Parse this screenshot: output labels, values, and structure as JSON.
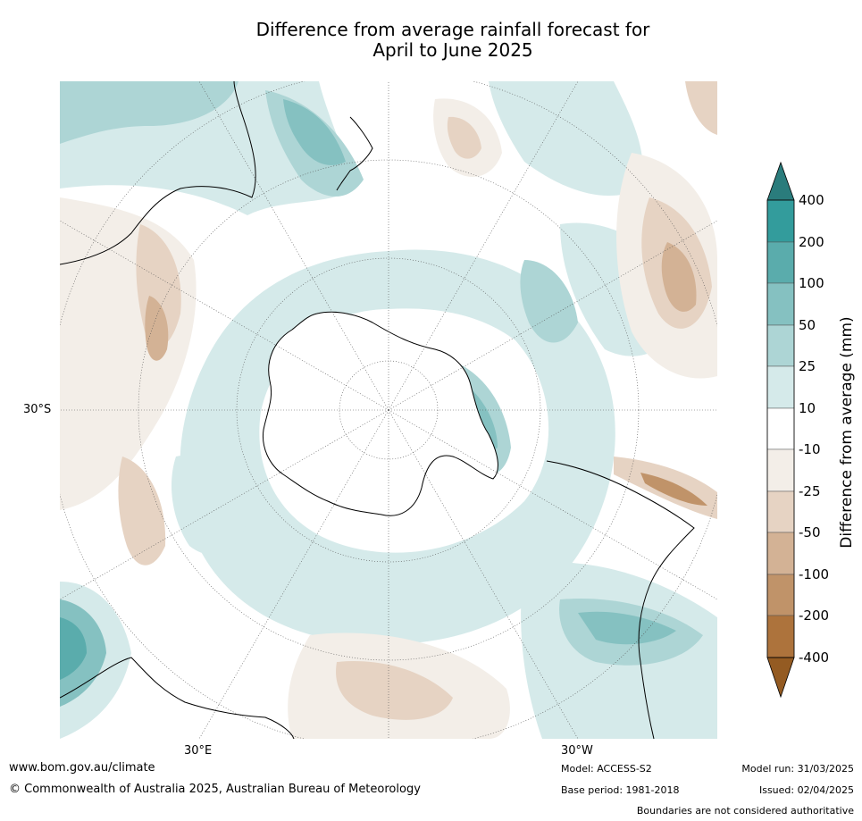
{
  "title_line1": "Difference from average rainfall forecast for",
  "title_line2": "April to June 2025",
  "latitude_label": "30°S",
  "longitude_labels": [
    "30°E",
    "30°W"
  ],
  "colorbar": {
    "label": "Difference from average (mm)",
    "ticks": [
      "400",
      "200",
      "100",
      "50",
      "25",
      "10",
      "-10",
      "-25",
      "-50",
      "-100",
      "-200",
      "-400"
    ],
    "colors": {
      "over": "#2a7c7c",
      "b200_400": "#339c9c",
      "b100_200": "#5aacac",
      "b50_100": "#85c1c1",
      "b25_50": "#add5d5",
      "b10_25": "#d5eaea",
      "neutral": "#ffffff",
      "n10_25": "#f3eee8",
      "n25_50": "#e6d3c3",
      "n50_100": "#d3b295",
      "n100_200": "#c09369",
      "n200_400": "#ad733c",
      "under": "#945b22"
    }
  },
  "footer": {
    "website": "www.bom.gov.au/climate",
    "copyright": "© Commonwealth of Australia 2025, Australian Bureau of Meteorology",
    "model": "Model: ACCESS-S2",
    "base_period": "Base period: 1981-2018",
    "model_run": "Model run: 31/03/2025",
    "issued": "Issued: 02/04/2025",
    "disclaimer": "Boundaries are not considered authoritative"
  }
}
